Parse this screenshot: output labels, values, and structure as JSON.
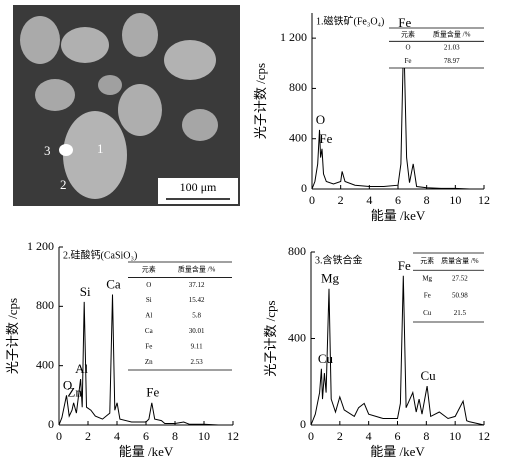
{
  "image": {
    "labels": [
      "1",
      "2",
      "3"
    ],
    "scale_bar": "100 μm"
  },
  "chart_data": [
    {
      "type": "line",
      "title": "1.磁铁矿(Fe₃O₄)",
      "x_label": "能量 /keV",
      "y_label": "光子计数 /cps",
      "color": "#000000",
      "xlim": [
        0,
        12
      ],
      "xticks": [
        0,
        2,
        4,
        6,
        8,
        10,
        12
      ],
      "ylim": [
        0,
        1400
      ],
      "yticks": [
        0,
        400,
        800,
        {
          "value": 1200,
          "label": "1 200"
        }
      ],
      "x": [
        0,
        0.2,
        0.4,
        0.52,
        0.6,
        0.7,
        0.8,
        1.0,
        1.5,
        2.0,
        2.1,
        2.3,
        3,
        4,
        5,
        6,
        6.2,
        6.4,
        6.6,
        6.8,
        7.06,
        7.3,
        8,
        9,
        10,
        11,
        12
      ],
      "values": [
        0,
        60,
        200,
        470,
        250,
        320,
        120,
        60,
        40,
        60,
        140,
        60,
        30,
        20,
        20,
        30,
        200,
        1240,
        250,
        50,
        200,
        20,
        10,
        5,
        5,
        0,
        0
      ],
      "annotations": [
        {
          "text": "O",
          "x": 0.52,
          "y": 470
        },
        {
          "text": "Fe",
          "x": 0.9,
          "y": 320
        },
        {
          "text": "Fe",
          "x": 6.4,
          "y": 1240
        }
      ],
      "table": {
        "headers": [
          "元素",
          "质量含量 /%"
        ],
        "rows": [
          {
            "element": "O",
            "value": 21.03
          },
          {
            "element": "Fe",
            "value": 78.97
          }
        ]
      }
    },
    {
      "type": "line",
      "title": "2.硅酸钙(CaSiO₃)",
      "x_label": "能量 /keV",
      "y_label": "光子计数 /cps",
      "color": "#000000",
      "xlim": [
        0,
        12
      ],
      "xticks": [
        0,
        2,
        4,
        6,
        8,
        10,
        12
      ],
      "ylim": [
        0,
        1200
      ],
      "yticks": [
        0,
        400,
        800,
        {
          "value": 1200,
          "label": "1 200"
        }
      ],
      "x": [
        0,
        0.2,
        0.52,
        0.7,
        0.9,
        1.01,
        1.2,
        1.49,
        1.6,
        1.74,
        1.9,
        2.2,
        2.5,
        3,
        3.5,
        3.69,
        3.85,
        4.01,
        4.2,
        5,
        6,
        6.2,
        6.4,
        6.6,
        7.06,
        7.3,
        8,
        8.6,
        9,
        10,
        11,
        12
      ],
      "values": [
        0,
        50,
        200,
        60,
        100,
        150,
        80,
        310,
        120,
        830,
        120,
        100,
        60,
        40,
        80,
        880,
        100,
        150,
        40,
        20,
        20,
        40,
        150,
        40,
        30,
        10,
        10,
        20,
        5,
        5,
        0,
        0
      ],
      "annotations": [
        {
          "text": "O",
          "x": 0.52,
          "y": 200
        },
        {
          "text": "Zn",
          "x": 1.01,
          "y": 150
        },
        {
          "text": "Al",
          "x": 1.49,
          "y": 310
        },
        {
          "text": "Si",
          "x": 1.74,
          "y": 830
        },
        {
          "text": "Ca",
          "x": 3.69,
          "y": 880
        },
        {
          "text": "Fe",
          "x": 6.4,
          "y": 150
        }
      ],
      "table": {
        "headers": [
          "元素",
          "质量含量 /%"
        ],
        "rows": [
          {
            "element": "O",
            "value": 37.12
          },
          {
            "element": "Si",
            "value": 15.42
          },
          {
            "element": "Al",
            "value": 5.8
          },
          {
            "element": "Ca",
            "value": 30.01
          },
          {
            "element": "Fe",
            "value": 9.11
          },
          {
            "element": "Zn",
            "value": 2.53
          }
        ]
      }
    },
    {
      "type": "line",
      "title": "3.含铁合金",
      "x_label": "能量 /keV",
      "y_label": "光子计数 /cps",
      "color": "#000000",
      "xlim": [
        0,
        12
      ],
      "xticks": [
        0,
        2,
        4,
        6,
        8,
        10,
        12
      ],
      "ylim": [
        0,
        800
      ],
      "yticks": [
        0,
        400,
        800
      ],
      "x": [
        0,
        0.3,
        0.6,
        0.72,
        0.8,
        0.93,
        1.05,
        1.25,
        1.4,
        1.7,
        2,
        2.3,
        3,
        3.3,
        3.69,
        4,
        5,
        6,
        6.2,
        6.4,
        6.6,
        7.06,
        7.3,
        7.5,
        7.7,
        8.05,
        8.3,
        8.9,
        9.5,
        10,
        10.55,
        10.8,
        11,
        12
      ],
      "values": [
        0,
        50,
        150,
        260,
        120,
        240,
        150,
        630,
        120,
        60,
        130,
        70,
        40,
        80,
        100,
        50,
        30,
        30,
        100,
        690,
        80,
        150,
        60,
        120,
        50,
        180,
        40,
        60,
        30,
        40,
        110,
        20,
        15,
        0
      ],
      "annotations": [
        {
          "text": "Cu",
          "x": 0.93,
          "y": 260
        },
        {
          "text": "Mg",
          "x": 1.25,
          "y": 630
        },
        {
          "text": "Fe",
          "x": 6.4,
          "y": 690
        },
        {
          "text": "Cu",
          "x": 8.05,
          "y": 180
        }
      ],
      "table": {
        "headers": [
          "元素",
          "质量含量 /%"
        ],
        "rows": [
          {
            "element": "Mg",
            "value": 27.52
          },
          {
            "element": "Fe",
            "value": 50.98
          },
          {
            "element": "Cu",
            "value": 21.5
          }
        ]
      }
    }
  ]
}
